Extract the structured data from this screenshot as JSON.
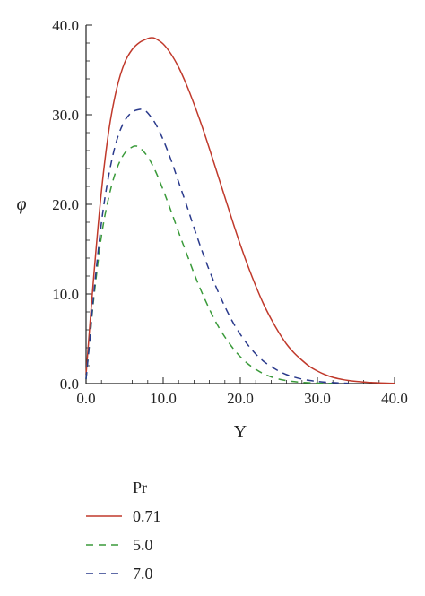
{
  "chart_data": {
    "type": "line",
    "xlabel": "Y",
    "ylabel": "φ",
    "xlim": [
      0,
      40
    ],
    "ylim": [
      0,
      40
    ],
    "xticks": [
      "0.0",
      "10.0",
      "20.0",
      "30.0",
      "40.0"
    ],
    "yticks": [
      "0.0",
      "10.0",
      "20.0",
      "30.0",
      "40.0"
    ],
    "grid": false,
    "legend": {
      "title": "Pr",
      "placement": "below"
    },
    "series": [
      {
        "name": "0.71",
        "color": "#c0392b",
        "style": "solid",
        "x": [
          0,
          1,
          2,
          3,
          4,
          5,
          6,
          7,
          8,
          8.5,
          9,
          10,
          11,
          12,
          13,
          14,
          15,
          16,
          17,
          18,
          19,
          20,
          21,
          22,
          23,
          24,
          25,
          26,
          27,
          28,
          29,
          30,
          31,
          32,
          33,
          34,
          35,
          36,
          37,
          38,
          39,
          40
        ],
        "y": [
          1.0,
          12.0,
          21.5,
          28.5,
          33.0,
          35.8,
          37.3,
          38.1,
          38.5,
          38.6,
          38.5,
          37.9,
          36.8,
          35.3,
          33.4,
          31.2,
          28.8,
          26.2,
          23.5,
          20.8,
          18.1,
          15.5,
          13.1,
          10.9,
          8.9,
          7.2,
          5.7,
          4.4,
          3.4,
          2.6,
          1.9,
          1.4,
          1.0,
          0.7,
          0.5,
          0.35,
          0.25,
          0.18,
          0.12,
          0.08,
          0.05,
          0.03
        ]
      },
      {
        "name": "5.0",
        "color": "#3a9a3a",
        "style": "dashed",
        "x": [
          0,
          0.5,
          1,
          2,
          3,
          4,
          5,
          6,
          6.5,
          7,
          8,
          9,
          10,
          11,
          12,
          13,
          14,
          15,
          16,
          17,
          18,
          19,
          20,
          21,
          22,
          23,
          24,
          25,
          26,
          27,
          28,
          29,
          30,
          32
        ],
        "y": [
          0.5,
          5.0,
          9.5,
          16.5,
          21.0,
          24.0,
          25.7,
          26.4,
          26.5,
          26.3,
          25.3,
          23.7,
          21.6,
          19.3,
          16.9,
          14.6,
          12.3,
          10.2,
          8.3,
          6.6,
          5.2,
          4.0,
          3.0,
          2.2,
          1.6,
          1.1,
          0.75,
          0.5,
          0.33,
          0.22,
          0.14,
          0.09,
          0.05,
          0.02
        ]
      },
      {
        "name": "7.0",
        "color": "#2a3a8c",
        "style": "dashed",
        "x": [
          0,
          0.5,
          1,
          2,
          3,
          4,
          5,
          6,
          7,
          7.5,
          8,
          9,
          10,
          11,
          12,
          13,
          14,
          15,
          16,
          17,
          18,
          19,
          20,
          21,
          22,
          23,
          24,
          25,
          26,
          27,
          28,
          29,
          30,
          31,
          32,
          33,
          34
        ],
        "y": [
          0.5,
          5.0,
          10.0,
          18.0,
          23.5,
          27.2,
          29.3,
          30.3,
          30.6,
          30.5,
          30.2,
          29.0,
          27.2,
          25.0,
          22.5,
          20.0,
          17.4,
          14.9,
          12.6,
          10.5,
          8.6,
          6.9,
          5.5,
          4.3,
          3.3,
          2.5,
          1.9,
          1.4,
          1.0,
          0.72,
          0.5,
          0.35,
          0.24,
          0.16,
          0.11,
          0.07,
          0.04
        ]
      }
    ]
  }
}
